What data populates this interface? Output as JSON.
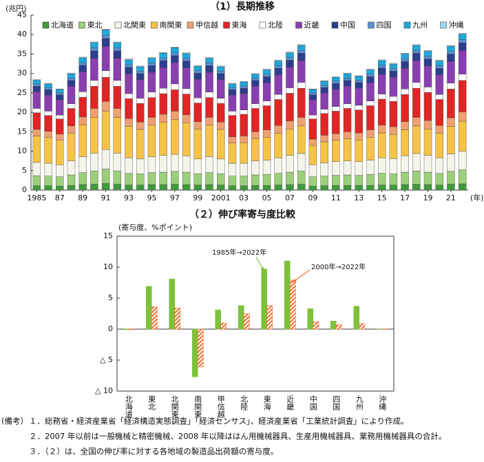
{
  "chart_data": [
    {
      "type": "bar",
      "stacked": true,
      "title": "（1）長期推移",
      "y_label": "(兆円)",
      "x_label": "(年)",
      "categories": [
        "1985",
        null,
        "87",
        null,
        "89",
        null,
        "91",
        null,
        "93",
        null,
        "95",
        null,
        "97",
        null,
        "99",
        null,
        "2001",
        null,
        "03",
        null,
        "05",
        null,
        "07",
        null,
        "09",
        null,
        "11",
        null,
        "13",
        null,
        "15",
        null,
        "17",
        null,
        "19",
        null,
        "21",
        null
      ],
      "ylim": [
        0,
        45
      ],
      "yticks": [
        0,
        5,
        10,
        15,
        20,
        25,
        30,
        35,
        40,
        45
      ],
      "legend": "top",
      "series": [
        {
          "name": "北海道",
          "color": "#3f9a3a",
          "values": [
            1.1,
            1.1,
            1.0,
            1.2,
            1.4,
            1.5,
            1.7,
            1.5,
            1.3,
            1.3,
            1.4,
            1.4,
            1.5,
            1.4,
            1.3,
            1.4,
            1.3,
            1.1,
            1.1,
            1.2,
            1.2,
            1.3,
            1.4,
            1.5,
            1.0,
            1.1,
            1.2,
            1.2,
            1.2,
            1.2,
            1.3,
            1.3,
            1.4,
            1.5,
            1.4,
            1.3,
            1.5,
            1.6
          ]
        },
        {
          "name": "東北",
          "color": "#9ccf7a",
          "values": [
            2.6,
            2.5,
            2.4,
            2.7,
            3.1,
            3.4,
            3.7,
            3.4,
            3.0,
            2.9,
            3.1,
            3.2,
            3.3,
            3.2,
            2.9,
            3.1,
            2.9,
            2.5,
            2.5,
            2.7,
            2.8,
            3.0,
            3.2,
            3.4,
            2.4,
            2.5,
            2.6,
            2.7,
            2.6,
            2.8,
            3.0,
            2.9,
            3.2,
            3.4,
            3.2,
            3.0,
            3.3,
            3.6
          ]
        },
        {
          "name": "北関東",
          "color": "#f4f4ea",
          "values": [
            3.4,
            3.3,
            3.1,
            3.6,
            4.1,
            4.6,
            5.0,
            4.6,
            4.0,
            3.8,
            4.1,
            4.3,
            4.4,
            4.2,
            3.8,
            4.1,
            3.8,
            3.3,
            3.3,
            3.6,
            3.7,
            4.0,
            4.3,
            4.5,
            3.1,
            3.4,
            3.5,
            3.6,
            3.5,
            3.7,
            4.0,
            3.9,
            4.2,
            4.5,
            4.3,
            4.0,
            4.5,
            4.8
          ]
        },
        {
          "name": "南関東",
          "color": "#f6c347",
          "values": [
            6.8,
            6.6,
            6.3,
            7.2,
            8.2,
            9.2,
            9.9,
            9.2,
            8.1,
            7.6,
            8.1,
            8.5,
            8.9,
            8.5,
            7.7,
            8.1,
            7.6,
            5.2,
            5.3,
            5.7,
            5.9,
            6.3,
            6.8,
            7.1,
            5.0,
            5.4,
            5.5,
            5.7,
            5.6,
            5.9,
            6.4,
            6.2,
            6.7,
            7.1,
            6.8,
            6.3,
            7.1,
            7.7
          ]
        },
        {
          "name": "甲信越",
          "color": "#f0a070",
          "values": [
            1.7,
            1.6,
            1.6,
            1.8,
            2.0,
            2.3,
            2.5,
            2.3,
            2.0,
            1.9,
            2.0,
            2.1,
            2.2,
            2.1,
            1.9,
            2.0,
            1.9,
            1.6,
            1.7,
            1.8,
            1.9,
            2.0,
            2.1,
            2.2,
            1.6,
            1.7,
            1.7,
            1.8,
            1.8,
            1.9,
            2.0,
            2.0,
            2.1,
            2.2,
            2.2,
            2.0,
            2.2,
            2.4
          ]
        },
        {
          "name": "東海",
          "color": "#e02525",
          "values": [
            4.3,
            4.1,
            3.9,
            4.5,
            5.1,
            5.7,
            6.2,
            5.7,
            5.1,
            4.8,
            5.1,
            5.3,
            5.5,
            5.3,
            4.8,
            5.1,
            4.8,
            5.5,
            5.6,
            6.0,
            6.2,
            6.7,
            7.1,
            7.5,
            5.2,
            5.6,
            5.8,
            6.0,
            5.9,
            6.2,
            6.7,
            6.5,
            7.0,
            7.5,
            7.2,
            6.7,
            7.4,
            8.1
          ]
        },
        {
          "name": "北陸",
          "color": "#ffffff",
          "values": [
            1.1,
            1.1,
            1.0,
            1.2,
            1.4,
            1.5,
            1.7,
            1.5,
            1.3,
            1.3,
            1.4,
            1.4,
            1.5,
            1.4,
            1.3,
            1.4,
            1.3,
            1.1,
            1.1,
            1.2,
            1.2,
            1.3,
            1.4,
            1.5,
            1.0,
            1.1,
            1.2,
            1.2,
            1.2,
            1.2,
            1.3,
            1.3,
            1.4,
            1.5,
            1.4,
            1.3,
            1.5,
            1.6
          ]
        },
        {
          "name": "近畿",
          "color": "#8a3fb0",
          "values": [
            4.3,
            4.1,
            3.9,
            4.5,
            5.1,
            5.7,
            6.2,
            5.7,
            5.1,
            4.8,
            5.1,
            5.3,
            5.5,
            5.3,
            4.8,
            5.1,
            4.8,
            4.1,
            4.2,
            4.5,
            4.7,
            5.0,
            5.3,
            5.6,
            3.9,
            4.2,
            4.4,
            4.5,
            4.4,
            4.7,
            5.0,
            4.9,
            5.3,
            5.6,
            5.4,
            5.0,
            5.6,
            6.1
          ]
        },
        {
          "name": "中国",
          "color": "#2c3e8c",
          "values": [
            1.4,
            1.4,
            1.3,
            1.5,
            1.7,
            1.9,
            2.1,
            1.9,
            1.7,
            1.6,
            1.7,
            1.8,
            1.8,
            1.8,
            1.6,
            1.7,
            1.6,
            1.4,
            1.4,
            1.5,
            1.6,
            1.7,
            1.8,
            1.9,
            1.3,
            1.4,
            1.5,
            1.5,
            1.5,
            1.6,
            1.7,
            1.6,
            1.8,
            1.9,
            1.8,
            1.7,
            1.9,
            2.0
          ]
        },
        {
          "name": "四国",
          "color": "#5a8fd0",
          "values": [
            0.6,
            0.5,
            0.5,
            0.6,
            0.7,
            0.8,
            0.8,
            0.8,
            0.7,
            0.6,
            0.7,
            0.7,
            0.7,
            0.7,
            0.6,
            0.7,
            0.6,
            0.5,
            0.6,
            0.6,
            0.6,
            0.7,
            0.7,
            0.7,
            0.5,
            0.6,
            0.6,
            0.6,
            0.6,
            0.6,
            0.7,
            0.7,
            0.7,
            0.7,
            0.7,
            0.7,
            0.7,
            0.8
          ]
        },
        {
          "name": "九州",
          "color": "#1fa8dc",
          "values": [
            1.0,
            1.0,
            0.9,
            1.1,
            1.2,
            1.3,
            1.4,
            1.3,
            1.2,
            1.1,
            1.2,
            1.2,
            1.3,
            1.2,
            1.1,
            1.2,
            1.1,
            1.0,
            1.0,
            1.0,
            1.1,
            1.2,
            1.2,
            1.3,
            0.9,
            1.0,
            1.0,
            1.1,
            1.0,
            1.1,
            1.2,
            1.1,
            1.2,
            1.3,
            1.3,
            1.2,
            1.3,
            1.4
          ]
        },
        {
          "name": "沖縄",
          "color": "#9fdaf2",
          "values": [
            0.1,
            0.1,
            0.1,
            0.2,
            0.2,
            0.2,
            0.2,
            0.2,
            0.2,
            0.2,
            0.2,
            0.2,
            0.2,
            0.2,
            0.2,
            0.2,
            0.2,
            0.1,
            0.1,
            0.1,
            0.2,
            0.2,
            0.2,
            0.2,
            0.1,
            0.1,
            0.1,
            0.2,
            0.1,
            0.2,
            0.2,
            0.2,
            0.2,
            0.2,
            0.2,
            0.2,
            0.2,
            0.2
          ]
        }
      ]
    },
    {
      "type": "bar",
      "stacked": false,
      "title": "（２）伸び率寄与度比較",
      "y_label": "(寄与度、%ポイント)",
      "categories": [
        "北海道",
        "東北",
        "北関東",
        "南関東",
        "甲信越",
        "北陸",
        "東海",
        "近畿",
        "中国",
        "四国",
        "九州",
        "沖縄"
      ],
      "ylim": [
        -10,
        15
      ],
      "yticks": [
        15,
        10,
        5,
        0,
        {
          "value": -5,
          "label": "△ 5"
        },
        {
          "value": -10,
          "label": "△ 10"
        }
      ],
      "series": [
        {
          "name": "1985年→2022年",
          "color": "#7dc23a",
          "values": [
            -0.1,
            6.9,
            8.1,
            -7.7,
            3.1,
            3.8,
            9.7,
            11.0,
            3.3,
            1.3,
            3.7,
            0.0
          ]
        },
        {
          "name": "2000年→2022年",
          "color": "#f07030",
          "hatch": true,
          "values": [
            -0.1,
            3.6,
            3.4,
            -6.1,
            1.0,
            2.5,
            3.8,
            7.9,
            1.2,
            0.7,
            0.9,
            0.0
          ]
        }
      ]
    }
  ],
  "notes": {
    "label": "(備考）",
    "lines": [
      "１．総務省・経済産業省「経済構造実態調査」「経済センサス」、経済産業省「工業統計調査」により作成。",
      "２．2007 年以前は一般機械と精密機械、2008 年以降ははん用機械器具、生産用機械器具、業務用機械器具の合計。",
      "３．（２）は、全国の伸び率に対する各地域の製造品出荷額の寄与度。"
    ]
  }
}
